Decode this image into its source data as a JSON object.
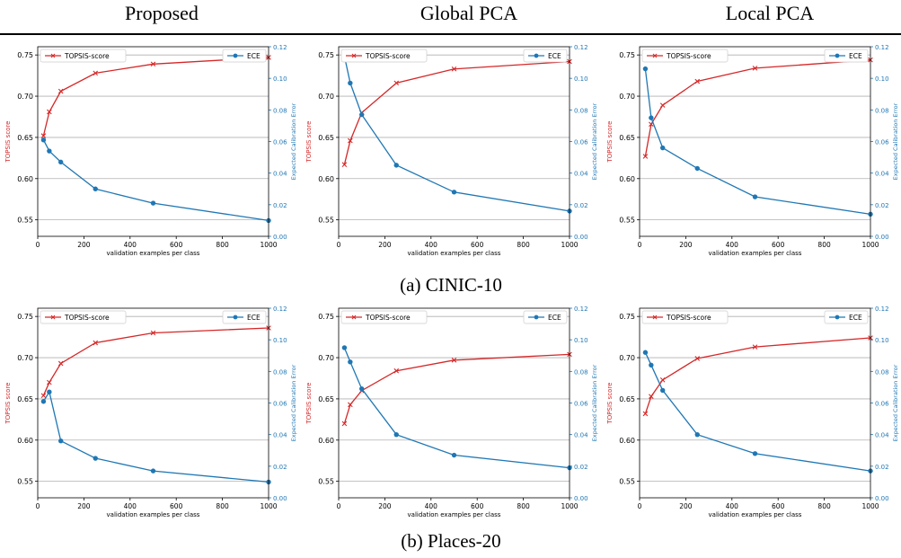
{
  "headers": [
    "Proposed",
    "Global PCA",
    "Local PCA"
  ],
  "captions": [
    "(a) CINIC-10",
    "(b) Places-20"
  ],
  "colors": {
    "topsis": "#d62728",
    "ece": "#1f77b4"
  },
  "chart_data": [
    {
      "type": "line",
      "row": 0,
      "col": 0,
      "x": [
        25,
        50,
        100,
        250,
        500,
        1000
      ],
      "series": [
        {
          "name": "TOPSIS-score",
          "axis": "left",
          "marker": "x",
          "values": [
            0.652,
            0.681,
            0.706,
            0.728,
            0.739,
            0.747
          ]
        },
        {
          "name": "ECE",
          "axis": "right",
          "marker": "o",
          "values": [
            0.061,
            0.054,
            0.047,
            0.03,
            0.021,
            0.01
          ]
        }
      ],
      "xlabel": "validation examples per class",
      "ylabel_left": "TOPSIS score",
      "ylabel_right": "Expected Calibration Error",
      "xlim": [
        0,
        1000
      ],
      "ylim_left": [
        0.53,
        0.76
      ],
      "ylim_right": [
        0,
        0.12
      ],
      "xticks": [
        0,
        200,
        400,
        600,
        800,
        1000
      ],
      "yticks_left": [
        0.55,
        0.6,
        0.65,
        0.7,
        0.75
      ],
      "yticks_right": [
        0.0,
        0.02,
        0.04,
        0.06,
        0.08,
        0.1,
        0.12
      ],
      "grid": "horizontal"
    },
    {
      "type": "line",
      "row": 0,
      "col": 1,
      "x": [
        25,
        50,
        100,
        250,
        500,
        1000
      ],
      "series": [
        {
          "name": "TOPSIS-score",
          "axis": "left",
          "marker": "x",
          "values": [
            0.617,
            0.646,
            0.68,
            0.716,
            0.733,
            0.742
          ]
        },
        {
          "name": "ECE",
          "axis": "right",
          "marker": "o",
          "values": [
            0.114,
            0.097,
            0.077,
            0.045,
            0.028,
            0.016
          ]
        }
      ],
      "xlabel": "validation examples per class",
      "ylabel_left": "TOPSIS score",
      "ylabel_right": "Expected Calibration Error",
      "xlim": [
        0,
        1000
      ],
      "ylim_left": [
        0.53,
        0.76
      ],
      "ylim_right": [
        0,
        0.12
      ],
      "xticks": [
        0,
        200,
        400,
        600,
        800,
        1000
      ],
      "yticks_left": [
        0.55,
        0.6,
        0.65,
        0.7,
        0.75
      ],
      "yticks_right": [
        0.0,
        0.02,
        0.04,
        0.06,
        0.08,
        0.1,
        0.12
      ],
      "grid": "horizontal"
    },
    {
      "type": "line",
      "row": 0,
      "col": 2,
      "x": [
        25,
        50,
        100,
        250,
        500,
        1000
      ],
      "series": [
        {
          "name": "TOPSIS-score",
          "axis": "left",
          "marker": "x",
          "values": [
            0.627,
            0.666,
            0.689,
            0.718,
            0.734,
            0.744
          ]
        },
        {
          "name": "ECE",
          "axis": "right",
          "marker": "o",
          "values": [
            0.106,
            0.075,
            0.056,
            0.043,
            0.025,
            0.014
          ]
        }
      ],
      "xlabel": "validation examples per class",
      "ylabel_left": "TOPSIS score",
      "ylabel_right": "Expected Calibration Error",
      "xlim": [
        0,
        1000
      ],
      "ylim_left": [
        0.53,
        0.76
      ],
      "ylim_right": [
        0,
        0.12
      ],
      "xticks": [
        0,
        200,
        400,
        600,
        800,
        1000
      ],
      "yticks_left": [
        0.55,
        0.6,
        0.65,
        0.7,
        0.75
      ],
      "yticks_right": [
        0.0,
        0.02,
        0.04,
        0.06,
        0.08,
        0.1,
        0.12
      ],
      "grid": "horizontal"
    },
    {
      "type": "line",
      "row": 1,
      "col": 0,
      "x": [
        25,
        50,
        100,
        250,
        500,
        1000
      ],
      "series": [
        {
          "name": "TOPSIS-score",
          "axis": "left",
          "marker": "x",
          "values": [
            0.654,
            0.67,
            0.693,
            0.718,
            0.73,
            0.736
          ]
        },
        {
          "name": "ECE",
          "axis": "right",
          "marker": "o",
          "values": [
            0.061,
            0.067,
            0.036,
            0.025,
            0.017,
            0.01
          ]
        }
      ],
      "xlabel": "validation examples per class",
      "ylabel_left": "TOPSIS score",
      "ylabel_right": "Expected Calibration Error",
      "xlim": [
        0,
        1000
      ],
      "ylim_left": [
        0.53,
        0.76
      ],
      "ylim_right": [
        0,
        0.12
      ],
      "xticks": [
        0,
        200,
        400,
        600,
        800,
        1000
      ],
      "yticks_left": [
        0.55,
        0.6,
        0.65,
        0.7,
        0.75
      ],
      "yticks_right": [
        0.0,
        0.02,
        0.04,
        0.06,
        0.08,
        0.1,
        0.12
      ],
      "grid": "horizontal"
    },
    {
      "type": "line",
      "row": 1,
      "col": 1,
      "x": [
        25,
        50,
        100,
        250,
        500,
        1000
      ],
      "series": [
        {
          "name": "TOPSIS-score",
          "axis": "left",
          "marker": "x",
          "values": [
            0.62,
            0.643,
            0.66,
            0.684,
            0.697,
            0.704
          ]
        },
        {
          "name": "ECE",
          "axis": "right",
          "marker": "o",
          "values": [
            0.095,
            0.086,
            0.069,
            0.04,
            0.027,
            0.019
          ]
        }
      ],
      "xlabel": "validation examples per class",
      "ylabel_left": "TOPSIS score",
      "ylabel_right": "Expected Calibration Error",
      "xlim": [
        0,
        1000
      ],
      "ylim_left": [
        0.53,
        0.76
      ],
      "ylim_right": [
        0,
        0.12
      ],
      "xticks": [
        0,
        200,
        400,
        600,
        800,
        1000
      ],
      "yticks_left": [
        0.55,
        0.6,
        0.65,
        0.7,
        0.75
      ],
      "yticks_right": [
        0.0,
        0.02,
        0.04,
        0.06,
        0.08,
        0.1,
        0.12
      ],
      "grid": "horizontal"
    },
    {
      "type": "line",
      "row": 1,
      "col": 2,
      "x": [
        25,
        50,
        100,
        250,
        500,
        1000
      ],
      "series": [
        {
          "name": "TOPSIS-score",
          "axis": "left",
          "marker": "x",
          "values": [
            0.632,
            0.653,
            0.673,
            0.699,
            0.713,
            0.724
          ]
        },
        {
          "name": "ECE",
          "axis": "right",
          "marker": "o",
          "values": [
            0.092,
            0.084,
            0.068,
            0.04,
            0.028,
            0.017
          ]
        }
      ],
      "xlabel": "validation examples per class",
      "ylabel_left": "TOPSIS score",
      "ylabel_right": "Expected Calibration Error",
      "xlim": [
        0,
        1000
      ],
      "ylim_left": [
        0.53,
        0.76
      ],
      "ylim_right": [
        0,
        0.12
      ],
      "xticks": [
        0,
        200,
        400,
        600,
        800,
        1000
      ],
      "yticks_left": [
        0.55,
        0.6,
        0.65,
        0.7,
        0.75
      ],
      "yticks_right": [
        0.0,
        0.02,
        0.04,
        0.06,
        0.08,
        0.1,
        0.12
      ],
      "grid": "horizontal"
    }
  ]
}
